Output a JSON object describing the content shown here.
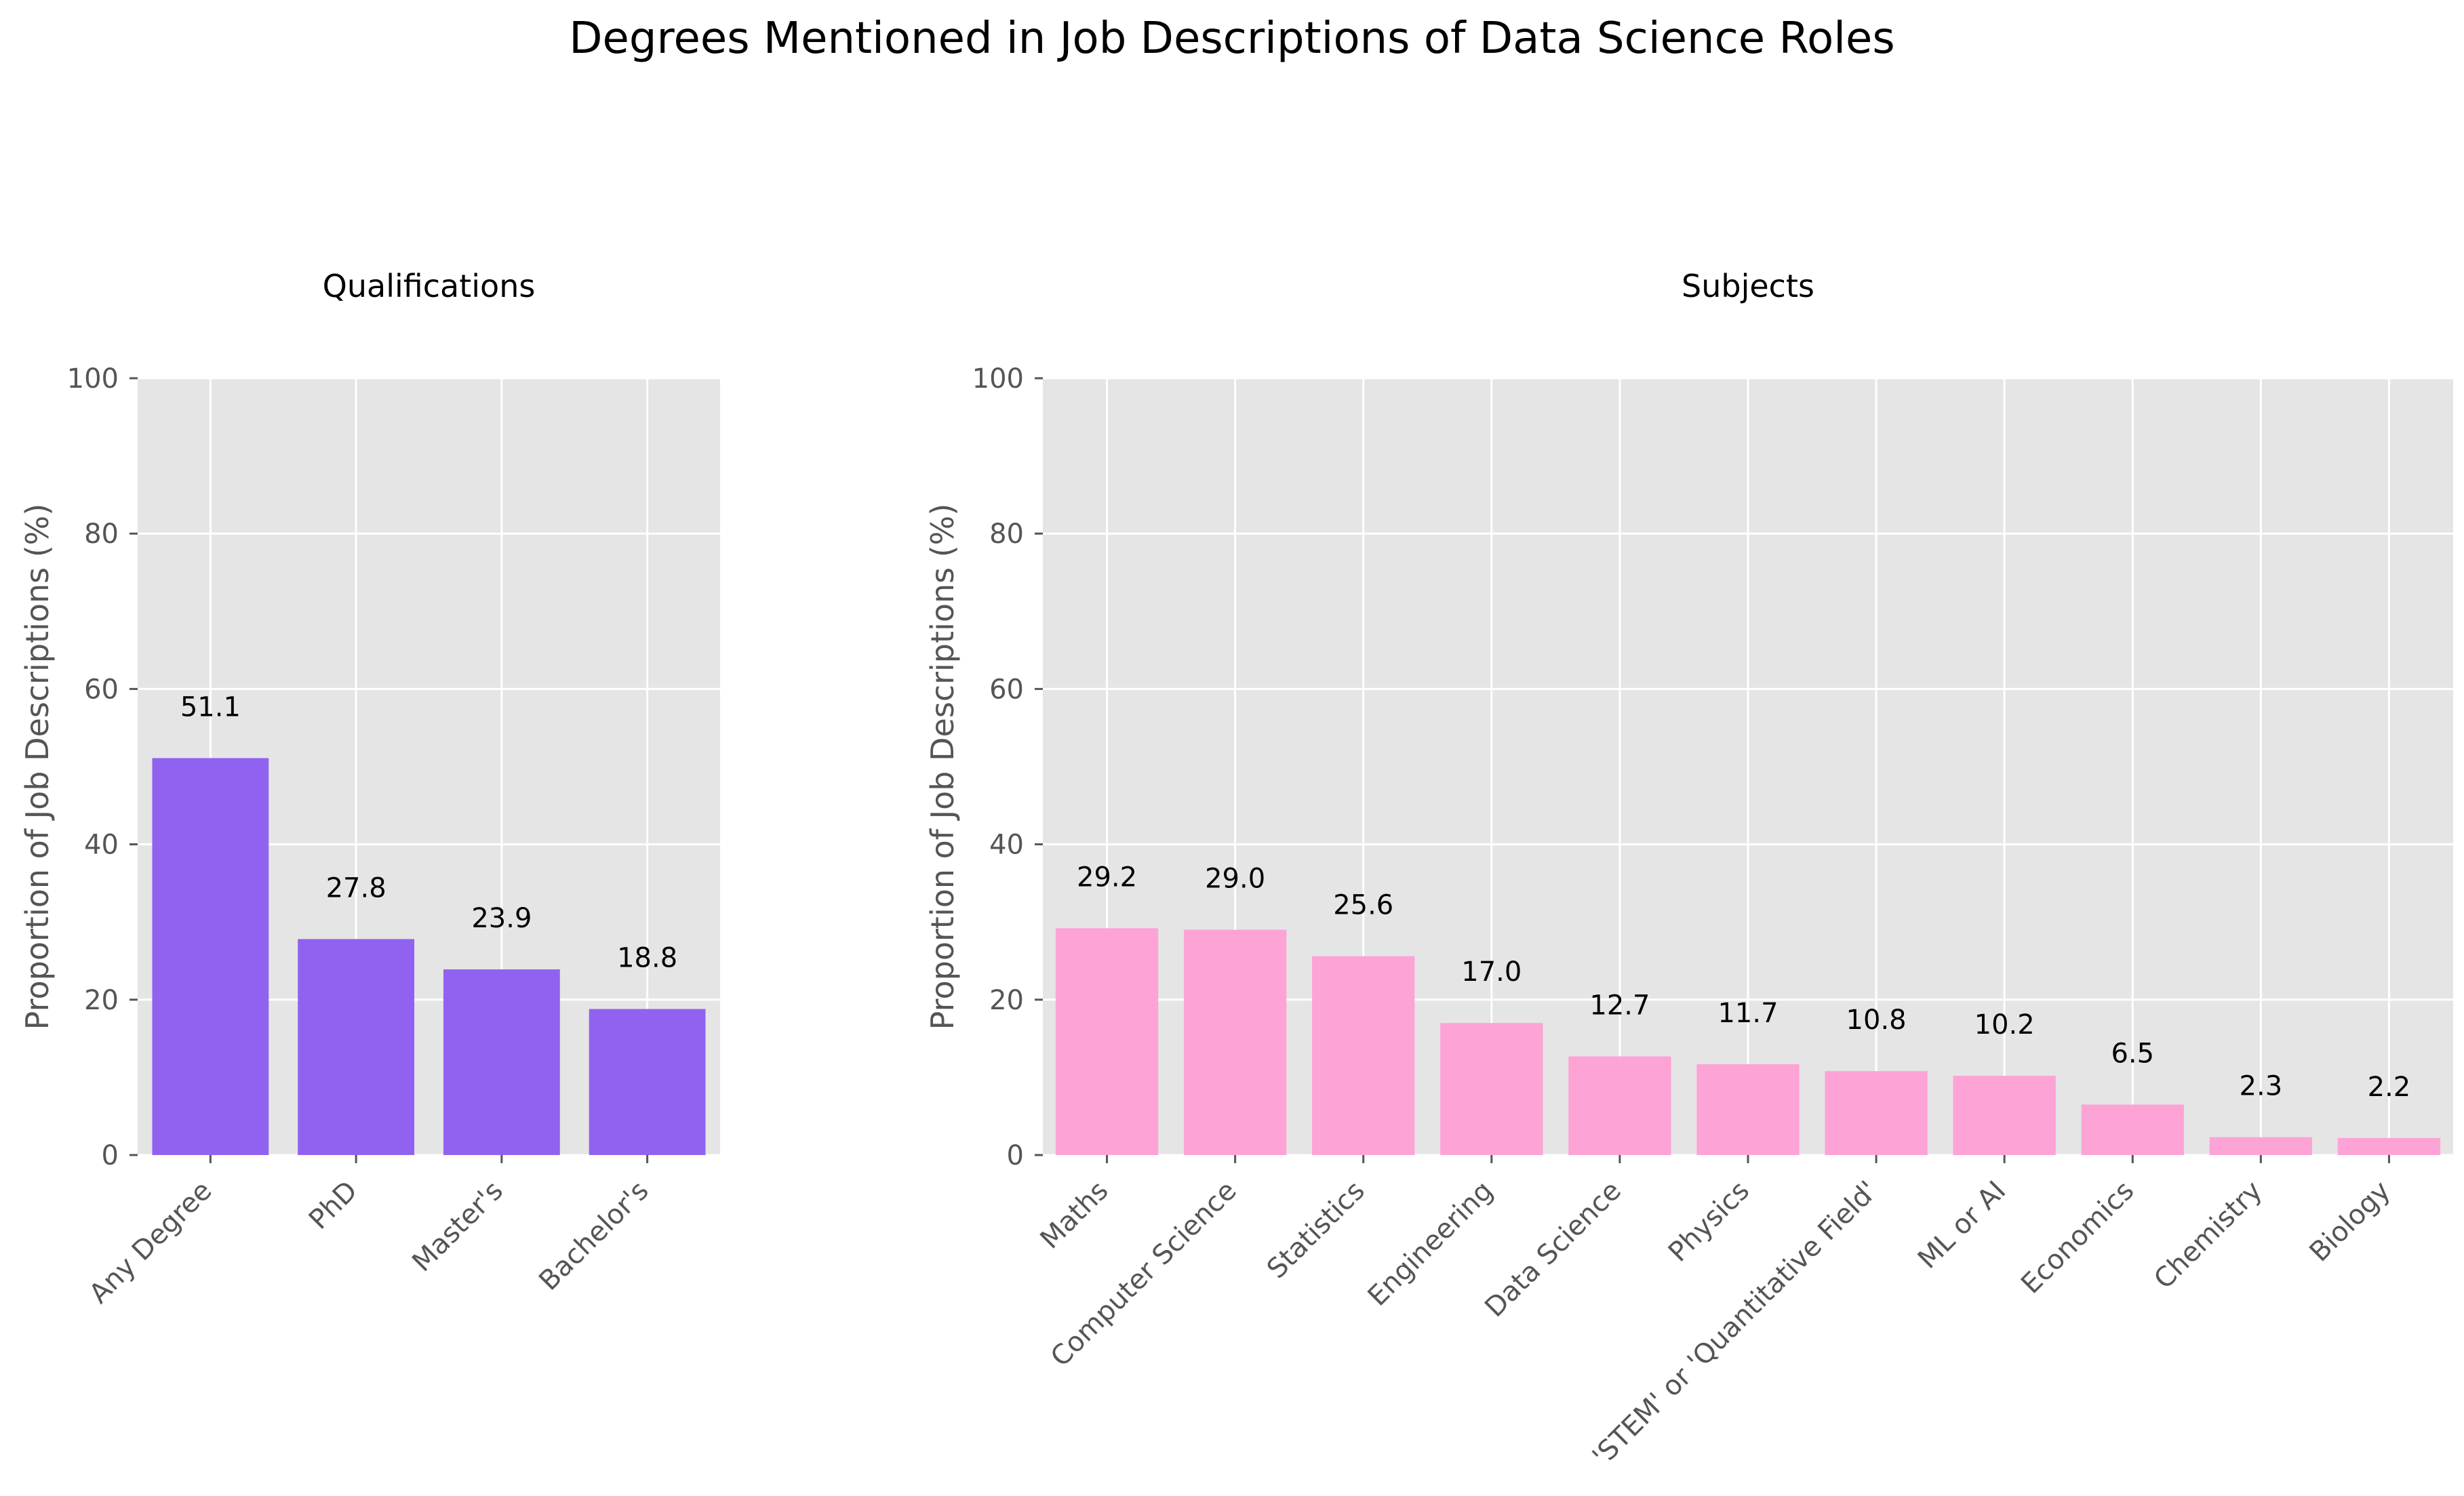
{
  "figure": {
    "suptitle": "Degrees Mentioned in Job Descriptions of Data Science Roles"
  },
  "chart_data": [
    {
      "type": "bar",
      "title": "Qualifications",
      "xlabel": "",
      "ylabel": "Proportion of Job Descriptions (%)",
      "ylim": [
        0,
        100
      ],
      "yticks": [
        "0",
        "20",
        "40",
        "60",
        "80",
        "100"
      ],
      "grid": true,
      "color": "#9162f0",
      "categories": [
        "Any Degree",
        "PhD",
        "Master's",
        "Bachelor's"
      ],
      "values": [
        51.1,
        27.8,
        23.9,
        18.8
      ],
      "value_labels": [
        "51.1",
        "27.8",
        "23.9",
        "18.8"
      ]
    },
    {
      "type": "bar",
      "title": "Subjects",
      "xlabel": "",
      "ylabel": "Proportion of Job Descriptions (%)",
      "ylim": [
        0,
        100
      ],
      "yticks": [
        "0",
        "20",
        "40",
        "60",
        "80",
        "100"
      ],
      "grid": true,
      "color": "#fda3d6",
      "categories": [
        "Maths",
        "Computer Science",
        "Statistics",
        "Engineering",
        "Data Science",
        "Physics",
        "'STEM' or 'Quantitative Field'",
        "ML or AI",
        "Economics",
        "Chemistry",
        "Biology"
      ],
      "values": [
        29.2,
        29.0,
        25.6,
        17.0,
        12.7,
        11.7,
        10.8,
        10.2,
        6.5,
        2.3,
        2.2
      ],
      "value_labels": [
        "29.2",
        "29.0",
        "25.6",
        "17.0",
        "12.7",
        "11.7",
        "10.8",
        "10.2",
        "6.5",
        "2.3",
        "2.2"
      ]
    }
  ]
}
